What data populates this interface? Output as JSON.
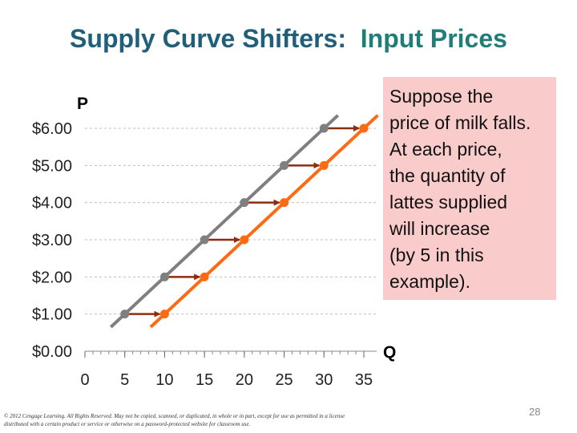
{
  "title": {
    "part1": "Supply Curve Shifters:  ",
    "part2": "Input Prices"
  },
  "callout_lines": [
    "Suppose the",
    "price of milk falls.",
    "At each price,",
    "the quantity of",
    "lattes supplied",
    "will increase",
    "(by 5 in this",
    "example)."
  ],
  "axis_letters": {
    "y": "P",
    "x": "Q"
  },
  "footer": "© 2012 Cengage Learning. All Rights Reserved. May not be copied, scanned, or duplicated, in whole or in part, except for use as permitted in a license distributed with a certain product or service or otherwise on a password-protected website for classroom use.",
  "page_number": "28",
  "colors": {
    "original_supply": "#7f7f7f",
    "new_supply": "#ff6a13",
    "arrow": "#8b2d0e",
    "title": "#1f5f7a",
    "callout_bg": "#f9cbcb"
  },
  "chart_data": {
    "type": "line",
    "x_ticks": [
      "0",
      "5",
      "10",
      "15",
      "20",
      "25",
      "30",
      "35"
    ],
    "y_ticks": [
      "$0.00",
      "$1.00",
      "$2.00",
      "$3.00",
      "$4.00",
      "$5.00",
      "$6.00"
    ],
    "xlim": [
      0,
      35
    ],
    "ylim": [
      0,
      6
    ],
    "grid": "horizontal dashed",
    "series": [
      {
        "points": [
          [
            5,
            1
          ],
          [
            10,
            2
          ],
          [
            15,
            3
          ],
          [
            20,
            4
          ],
          [
            25,
            5
          ],
          [
            30,
            6
          ]
        ],
        "color": "#7f7f7f"
      },
      {
        "points": [
          [
            10,
            1
          ],
          [
            15,
            2
          ],
          [
            20,
            3
          ],
          [
            25,
            4
          ],
          [
            30,
            5
          ],
          [
            35,
            6
          ]
        ],
        "color": "#ff6a13"
      }
    ],
    "arrows": [
      {
        "from": [
          5,
          1
        ],
        "to": [
          10,
          1
        ]
      },
      {
        "from": [
          10,
          2
        ],
        "to": [
          15,
          2
        ]
      },
      {
        "from": [
          15,
          3
        ],
        "to": [
          20,
          3
        ]
      },
      {
        "from": [
          20,
          4
        ],
        "to": [
          25,
          4
        ]
      },
      {
        "from": [
          25,
          5
        ],
        "to": [
          30,
          5
        ]
      },
      {
        "from": [
          30,
          6
        ],
        "to": [
          35,
          6
        ]
      }
    ]
  }
}
